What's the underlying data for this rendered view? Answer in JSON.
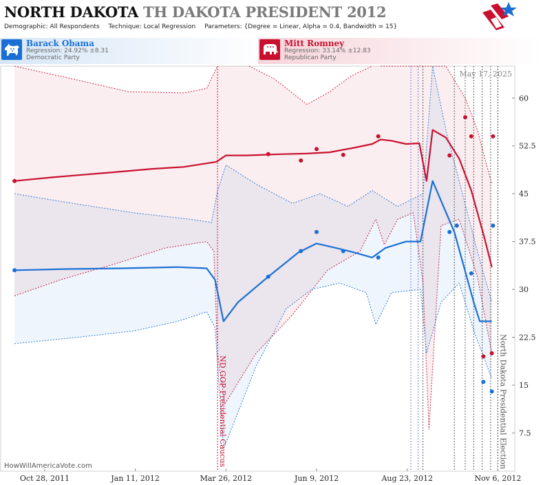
{
  "header": {
    "title_state": "NORTH DAKOTA",
    "title_race": "TH DAKOTA PRESIDENT 2012",
    "demographic_label": "Demographic:",
    "demographic_value": "All Respondents",
    "technique_label": "Technique:",
    "technique_value": "Local Regression",
    "parameters_label": "Parameters:",
    "parameters_value": "{Degree = Linear, Alpha = 0.4, Bandwidth = 15}"
  },
  "candidates": {
    "dem": {
      "name": "Barack Obama",
      "regression": "Regression: 24.92% ±8.31",
      "party": "Democratic Party",
      "color": "#1a6fd4"
    },
    "rep": {
      "name": "Mitt Romney",
      "regression": "Regression: 33.14% ±12.83",
      "party": "Republican Party",
      "color": "#c8102e"
    }
  },
  "watermark": "HowWillAmericaVote.com",
  "date_stamp": "May 17, 2025",
  "chart_data": {
    "type": "line",
    "x_type": "date",
    "xlim": [
      "2011-09-21",
      "2012-11-20"
    ],
    "ylim": [
      1.5,
      65
    ],
    "y_ticks": [
      7.5,
      15,
      22.5,
      30,
      37.5,
      45,
      52.5,
      60
    ],
    "x_ticks": [
      {
        "date": "2011-10-28",
        "label": "Oct 28, 2011"
      },
      {
        "date": "2012-01-11",
        "label": "Jan 11, 2012"
      },
      {
        "date": "2012-03-26",
        "label": "Mar 26, 2012"
      },
      {
        "date": "2012-06-09",
        "label": "Jun 9, 2012"
      },
      {
        "date": "2012-08-23",
        "label": "Aug 23, 2012"
      },
      {
        "date": "2012-11-06",
        "label": "Nov 6, 2012"
      }
    ],
    "annotations": [
      {
        "date": "2012-03-19",
        "label": "ND GOP Presidential Caucus",
        "color": "#c8102e"
      },
      {
        "date": "2012-11-06",
        "label": "North Dakota Presidential Election",
        "color": "#555555"
      }
    ],
    "series": [
      {
        "name": "Mitt Romney",
        "color": "#c8102e",
        "band_color": "#c8102e",
        "line": [
          [
            "2011-10-03",
            47.0
          ],
          [
            "2011-11-05",
            47.6
          ],
          [
            "2011-12-20",
            48.3
          ],
          [
            "2012-01-25",
            48.9
          ],
          [
            "2012-02-20",
            49.2
          ],
          [
            "2012-03-18",
            50.0
          ],
          [
            "2012-03-26",
            51.0
          ],
          [
            "2012-04-12",
            51.0
          ],
          [
            "2012-05-10",
            51.2
          ],
          [
            "2012-06-01",
            51.3
          ],
          [
            "2012-06-20",
            51.5
          ],
          [
            "2012-07-10",
            52.2
          ],
          [
            "2012-07-25",
            52.8
          ],
          [
            "2012-08-01",
            53.5
          ],
          [
            "2012-08-10",
            53.3
          ],
          [
            "2012-08-22",
            52.8
          ],
          [
            "2012-09-02",
            52.9
          ],
          [
            "2012-09-08",
            47.0
          ],
          [
            "2012-09-13",
            55.0
          ],
          [
            "2012-09-24",
            53.8
          ],
          [
            "2012-10-05",
            50.5
          ],
          [
            "2012-10-15",
            45.5
          ],
          [
            "2012-10-26",
            38.0
          ],
          [
            "2012-11-01",
            33.5
          ]
        ],
        "upper": [
          [
            "2011-10-03",
            65
          ],
          [
            "2011-11-20",
            63.0
          ],
          [
            "2012-01-05",
            61.0
          ],
          [
            "2012-02-20",
            60.8
          ],
          [
            "2012-03-10",
            61.5
          ],
          [
            "2012-03-19",
            65
          ]
        ],
        "upper_b": [
          [
            "2012-04-14",
            65
          ],
          [
            "2012-05-05",
            63.0
          ],
          [
            "2012-06-01",
            59.0
          ],
          [
            "2012-06-20",
            61.0
          ],
          [
            "2012-07-08",
            63.5
          ],
          [
            "2012-07-25",
            65
          ]
        ],
        "upper_c": [
          [
            "2012-08-01",
            65
          ],
          [
            "2012-08-23",
            65
          ],
          [
            "2012-09-24",
            65
          ],
          [
            "2012-10-10",
            60.0
          ],
          [
            "2012-10-20",
            55.0
          ],
          [
            "2012-11-01",
            46.5
          ]
        ],
        "lower": [
          [
            "2011-10-03",
            29.0
          ],
          [
            "2011-11-10",
            31.5
          ],
          [
            "2011-12-25",
            34.0
          ],
          [
            "2012-02-05",
            36.5
          ],
          [
            "2012-03-10",
            37.5
          ],
          [
            "2012-03-16",
            36.0
          ],
          [
            "2012-03-19",
            20.0
          ],
          [
            "2012-03-25",
            12.0
          ],
          [
            "2012-04-20",
            20.0
          ],
          [
            "2012-05-20",
            26.0
          ],
          [
            "2012-06-18",
            33.0
          ],
          [
            "2012-07-15",
            36.0
          ],
          [
            "2012-07-28",
            41.0
          ],
          [
            "2012-08-04",
            37.0
          ],
          [
            "2012-08-15",
            41.0
          ],
          [
            "2012-08-28",
            42.0
          ],
          [
            "2012-09-05",
            31.0
          ],
          [
            "2012-09-10",
            8.0
          ],
          [
            "2012-09-20",
            40.0
          ],
          [
            "2012-10-05",
            41.0
          ],
          [
            "2012-10-20",
            32.0
          ],
          [
            "2012-11-01",
            20.0
          ]
        ],
        "points": [
          [
            "2011-10-03",
            47.0
          ],
          [
            "2012-04-30",
            51.2
          ],
          [
            "2012-05-27",
            50.2
          ],
          [
            "2012-06-09",
            52.0
          ],
          [
            "2012-07-01",
            51.1
          ],
          [
            "2012-07-30",
            54.0
          ],
          [
            "2012-09-27",
            51.0
          ],
          [
            "2012-10-03",
            40.0
          ],
          [
            "2012-10-10",
            57.0
          ],
          [
            "2012-10-15",
            54.0
          ],
          [
            "2012-10-25",
            19.5
          ],
          [
            "2012-11-01",
            20.0
          ],
          [
            "2012-11-02",
            54.0
          ]
        ]
      },
      {
        "name": "Barack Obama",
        "color": "#1a6fd4",
        "band_color": "#1a6fd4",
        "line": [
          [
            "2011-10-03",
            33.0
          ],
          [
            "2011-11-15",
            33.2
          ],
          [
            "2011-12-30",
            33.3
          ],
          [
            "2012-02-15",
            33.5
          ],
          [
            "2012-03-10",
            33.3
          ],
          [
            "2012-03-17",
            31.5
          ],
          [
            "2012-03-24",
            25.0
          ],
          [
            "2012-04-05",
            28.0
          ],
          [
            "2012-04-30",
            32.0
          ],
          [
            "2012-05-25",
            35.8
          ],
          [
            "2012-06-09",
            37.2
          ],
          [
            "2012-06-25",
            36.5
          ],
          [
            "2012-07-10",
            35.8
          ],
          [
            "2012-07-25",
            35.0
          ],
          [
            "2012-08-05",
            36.5
          ],
          [
            "2012-08-22",
            37.5
          ],
          [
            "2012-09-03",
            37.5
          ],
          [
            "2012-09-13",
            47.0
          ],
          [
            "2012-10-01",
            39.0
          ],
          [
            "2012-10-17",
            28.0
          ],
          [
            "2012-10-22",
            25.0
          ],
          [
            "2012-11-01",
            25.0
          ]
        ],
        "upper": [
          [
            "2011-10-03",
            45.0
          ],
          [
            "2011-11-20",
            43.5
          ],
          [
            "2012-01-10",
            42.0
          ],
          [
            "2012-02-25",
            41.0
          ],
          [
            "2012-03-14",
            40.5
          ],
          [
            "2012-03-19",
            45.5
          ],
          [
            "2012-03-26",
            49.5
          ],
          [
            "2012-04-20",
            46.5
          ],
          [
            "2012-05-20",
            43.5
          ],
          [
            "2012-06-12",
            45.0
          ],
          [
            "2012-07-05",
            43.0
          ],
          [
            "2012-07-25",
            45.5
          ],
          [
            "2012-08-15",
            43.0
          ],
          [
            "2012-09-05",
            45.0
          ],
          [
            "2012-09-13",
            65.0
          ],
          [
            "2012-09-24",
            55.0
          ],
          [
            "2012-10-05",
            47.0
          ],
          [
            "2012-10-20",
            36.0
          ],
          [
            "2012-11-01",
            28.0
          ]
        ],
        "lower": [
          [
            "2011-10-03",
            21.5
          ],
          [
            "2011-11-25",
            22.5
          ],
          [
            "2012-01-10",
            23.5
          ],
          [
            "2012-02-15",
            25.0
          ],
          [
            "2012-03-10",
            26.5
          ],
          [
            "2012-03-17",
            24.0
          ],
          [
            "2012-03-24",
            5.0
          ],
          [
            "2012-04-20",
            18.0
          ],
          [
            "2012-05-15",
            27.0
          ],
          [
            "2012-06-05",
            30.0
          ],
          [
            "2012-06-28",
            31.0
          ],
          [
            "2012-07-20",
            29.5
          ],
          [
            "2012-07-28",
            24.5
          ],
          [
            "2012-08-10",
            29.5
          ],
          [
            "2012-09-03",
            30.0
          ],
          [
            "2012-09-08",
            20.0
          ],
          [
            "2012-09-20",
            28.0
          ],
          [
            "2012-10-05",
            31.0
          ],
          [
            "2012-10-18",
            23.0
          ],
          [
            "2012-11-01",
            16.0
          ]
        ],
        "points": [
          [
            "2011-10-03",
            33.0
          ],
          [
            "2012-04-30",
            32.0
          ],
          [
            "2012-05-27",
            36.0
          ],
          [
            "2012-06-09",
            39.0
          ],
          [
            "2012-07-01",
            36.0
          ],
          [
            "2012-07-30",
            35.0
          ],
          [
            "2012-09-27",
            39.0
          ],
          [
            "2012-10-03",
            40.0
          ],
          [
            "2012-10-15",
            32.5
          ],
          [
            "2012-10-25",
            15.5
          ],
          [
            "2012-11-01",
            14.0
          ],
          [
            "2012-11-02",
            40.0
          ]
        ]
      }
    ],
    "extra_vlines": [
      "2012-08-26",
      "2012-09-01",
      "2012-09-05",
      "2012-10-01",
      "2012-10-10",
      "2012-10-17",
      "2012-10-24",
      "2012-10-31",
      "2012-11-06"
    ]
  }
}
